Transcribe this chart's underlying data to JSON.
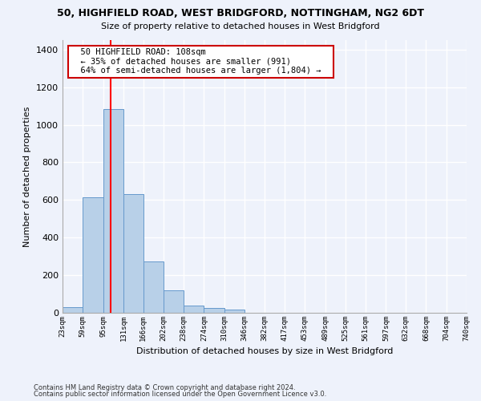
{
  "title_line1": "50, HIGHFIELD ROAD, WEST BRIDGFORD, NOTTINGHAM, NG2 6DT",
  "title_line2": "Size of property relative to detached houses in West Bridgford",
  "xlabel": "Distribution of detached houses by size in West Bridgford",
  "ylabel": "Number of detached properties",
  "footnote1": "Contains HM Land Registry data © Crown copyright and database right 2024.",
  "footnote2": "Contains public sector information licensed under the Open Government Licence v3.0.",
  "annotation_line1": "50 HIGHFIELD ROAD: 108sqm",
  "annotation_line2": "← 35% of detached houses are smaller (991)",
  "annotation_line3": "64% of semi-detached houses are larger (1,804) →",
  "bar_color": "#b8d0e8",
  "bar_edge_color": "#6699cc",
  "red_line_x": 108,
  "bin_edges": [
    23,
    59,
    95,
    131,
    166,
    202,
    238,
    274,
    310,
    346,
    382,
    417,
    453,
    489,
    525,
    561,
    597,
    632,
    668,
    704,
    740
  ],
  "bar_heights": [
    30,
    615,
    1085,
    630,
    275,
    120,
    40,
    25,
    15,
    0,
    0,
    0,
    0,
    0,
    0,
    0,
    0,
    0,
    0,
    0
  ],
  "ylim": [
    0,
    1450
  ],
  "yticks": [
    0,
    200,
    400,
    600,
    800,
    1000,
    1200,
    1400
  ],
  "background_color": "#eef2fb",
  "grid_color": "#ffffff",
  "annotation_box_facecolor": "#ffffff",
  "annotation_box_edgecolor": "#cc0000"
}
